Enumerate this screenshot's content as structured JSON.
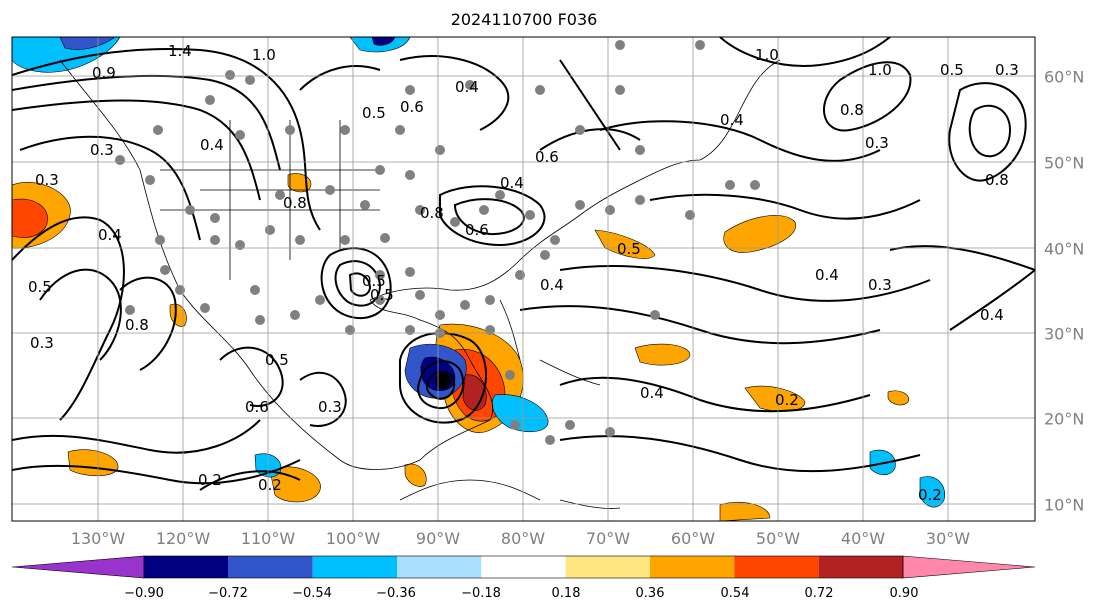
{
  "title": "2024110700 F036",
  "lon_labels": [
    "130°W",
    "120°W",
    "110°W",
    "100°W",
    "90°W",
    "80°W",
    "70°W",
    "60°W",
    "50°W",
    "40°W",
    "30°W"
  ],
  "lat_labels": [
    "60°N",
    "50°N",
    "40°N",
    "30°N",
    "20°N",
    "10°N"
  ],
  "contour_labels": [
    "1.4",
    "1.0",
    "0.9",
    "0.6",
    "0.5",
    "0.4",
    "0.3",
    "0.8",
    "0.6",
    "0.4",
    "0.5",
    "0.8",
    "0.6",
    "1.0",
    "0.8",
    "0.3",
    "0.5",
    "0.4",
    "0.3",
    "0.4",
    "0.5",
    "0.8",
    "0.4",
    "0.3",
    "0.4",
    "0.5",
    "0.6",
    "0.3",
    "0.2",
    "0.2",
    "0.2",
    "0.5",
    "0.4",
    "0.4",
    "0.3",
    "0.2",
    "0.4",
    "1.0",
    "0.8",
    "0.5",
    "0.3"
  ],
  "colorbar": {
    "ticks": [
      "−0.90",
      "−0.72",
      "−0.54",
      "−0.36",
      "−0.18",
      "0.18",
      "0.36",
      "0.54",
      "0.72",
      "0.90"
    ],
    "colors": [
      "#9933cc",
      "#000080",
      "#3355cc",
      "#00bfff",
      "#aadfff",
      "#ffffff",
      "#ffe680",
      "#ffa500",
      "#ff4500",
      "#b22222",
      "#ff88aa"
    ]
  }
}
